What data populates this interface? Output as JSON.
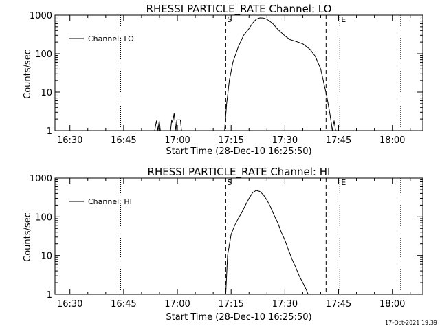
{
  "footer": "17-Oct-2021 19:39",
  "chart_data": [
    {
      "type": "line",
      "title": "RHESSI PARTICLE_RATE Channel: LO",
      "xlabel": "Start Time (28-Dec-10 16:25:50)",
      "ylabel": "Counts/sec",
      "y_scale": "log",
      "ylim": [
        1,
        1000
      ],
      "yticks": [
        "1",
        "10",
        "100",
        "1000"
      ],
      "xlim": [
        "16:25:50",
        "18:08:30"
      ],
      "xticks": [
        "16:30",
        "16:45",
        "17:00",
        "17:15",
        "17:30",
        "17:45",
        "18:00"
      ],
      "grid": false,
      "legend": "top-left",
      "series": [
        {
          "name": "Channel: LO",
          "points": [
            [
              "16:53:40",
              1
            ],
            [
              "16:54:10",
              1.8
            ],
            [
              "16:54:35",
              1
            ],
            [
              "16:54:55",
              1.8
            ],
            [
              "16:55:15",
              1
            ],
            [
              "16:58:05",
              1
            ],
            [
              "16:58:25",
              1.9
            ],
            [
              "16:58:40",
              1.6
            ],
            [
              "16:59:05",
              2.8
            ],
            [
              "16:59:35",
              1
            ],
            [
              "16:59:50",
              1.9
            ],
            [
              "17:00:50",
              1.9
            ],
            [
              "17:01:10",
              1
            ],
            [
              "17:13:10",
              1
            ],
            [
              "17:13:45",
              5
            ],
            [
              "17:14:30",
              20
            ],
            [
              "17:15:30",
              60
            ],
            [
              "17:17:00",
              150
            ],
            [
              "17:18:30",
              300
            ],
            [
              "17:20:00",
              450
            ],
            [
              "17:21:00",
              620
            ],
            [
              "17:22:00",
              780
            ],
            [
              "17:23:00",
              850
            ],
            [
              "17:24:00",
              840
            ],
            [
              "17:25:00",
              780
            ],
            [
              "17:26:30",
              620
            ],
            [
              "17:28:00",
              430
            ],
            [
              "17:30:00",
              290
            ],
            [
              "17:31:30",
              230
            ],
            [
              "17:33:00",
              210
            ],
            [
              "17:35:00",
              180
            ],
            [
              "17:37:00",
              130
            ],
            [
              "17:38:30",
              85
            ],
            [
              "17:40:00",
              40
            ],
            [
              "17:40:50",
              18
            ],
            [
              "17:41:40",
              8
            ],
            [
              "17:42:30",
              3
            ],
            [
              "17:43:00",
              1.5
            ],
            [
              "17:43:15",
              1
            ],
            [
              "17:43:45",
              1.8
            ],
            [
              "17:44:10",
              1
            ]
          ]
        }
      ],
      "markers": [
        {
          "time": "16:44:10",
          "style": "dotted",
          "label": ""
        },
        {
          "time": "17:13:30",
          "style": "dashed",
          "label": "S"
        },
        {
          "time": "17:41:30",
          "style": "dashed",
          "label": ""
        },
        {
          "time": "17:45:20",
          "style": "dotted",
          "label": "E"
        },
        {
          "time": "18:02:20",
          "style": "dotted",
          "label": ""
        }
      ]
    },
    {
      "type": "line",
      "title": "RHESSI PARTICLE_RATE Channel: HI",
      "xlabel": "Start Time (28-Dec-10 16:25:50)",
      "ylabel": "Counts/sec",
      "y_scale": "log",
      "ylim": [
        1,
        1000
      ],
      "yticks": [
        "1",
        "10",
        "100",
        "1000"
      ],
      "xlim": [
        "16:25:50",
        "18:08:30"
      ],
      "xticks": [
        "16:30",
        "16:45",
        "17:00",
        "17:15",
        "17:30",
        "17:45",
        "18:00"
      ],
      "grid": false,
      "legend": "top-left",
      "series": [
        {
          "name": "Channel: HI",
          "points": [
            [
              "17:13:30",
              1
            ],
            [
              "17:14:00",
              10
            ],
            [
              "17:15:00",
              35
            ],
            [
              "17:16:00",
              60
            ],
            [
              "17:17:00",
              90
            ],
            [
              "17:18:00",
              130
            ],
            [
              "17:19:00",
              200
            ],
            [
              "17:20:00",
              300
            ],
            [
              "17:21:00",
              420
            ],
            [
              "17:22:00",
              480
            ],
            [
              "17:23:00",
              450
            ],
            [
              "17:24:00",
              370
            ],
            [
              "17:25:00",
              270
            ],
            [
              "17:26:00",
              180
            ],
            [
              "17:27:00",
              110
            ],
            [
              "17:28:00",
              70
            ],
            [
              "17:29:00",
              40
            ],
            [
              "17:30:00",
              25
            ],
            [
              "17:31:00",
              14
            ],
            [
              "17:32:00",
              8
            ],
            [
              "17:33:00",
              5
            ],
            [
              "17:34:00",
              3
            ],
            [
              "17:35:00",
              2
            ],
            [
              "17:36:00",
              1.3
            ],
            [
              "17:36:30",
              1
            ]
          ]
        }
      ],
      "markers": [
        {
          "time": "16:44:10",
          "style": "dotted",
          "label": ""
        },
        {
          "time": "17:13:30",
          "style": "dashed",
          "label": "S"
        },
        {
          "time": "17:41:30",
          "style": "dashed",
          "label": ""
        },
        {
          "time": "17:45:20",
          "style": "dotted",
          "label": "E"
        },
        {
          "time": "18:02:20",
          "style": "dotted",
          "label": ""
        }
      ]
    }
  ]
}
